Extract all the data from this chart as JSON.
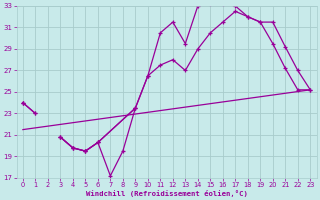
{
  "bg_color": "#c8eaea",
  "grid_color": "#a8cccc",
  "line_color": "#990099",
  "xlabel": "Windchill (Refroidissement éolien,°C)",
  "xlim": [
    -0.5,
    23.5
  ],
  "ylim": [
    17,
    33
  ],
  "yticks": [
    17,
    19,
    21,
    23,
    25,
    27,
    29,
    31,
    33
  ],
  "xticks": [
    0,
    1,
    2,
    3,
    4,
    5,
    6,
    7,
    8,
    9,
    10,
    11,
    12,
    13,
    14,
    15,
    16,
    17,
    18,
    19,
    20,
    21,
    22,
    23
  ],
  "line1_x": [
    0,
    1,
    3,
    4,
    5,
    6,
    7,
    8,
    9
  ],
  "line1_y": [
    24.0,
    23.0,
    20.8,
    19.8,
    19.5,
    20.3,
    17.2,
    19.5,
    23.5
  ],
  "line2_x": [
    0,
    3,
    4,
    5,
    6,
    9,
    10,
    11,
    12,
    13,
    14,
    15,
    16,
    17,
    18,
    19,
    20,
    21,
    22,
    23
  ],
  "line2_y": [
    24.0,
    20.8,
    19.8,
    19.5,
    20.3,
    23.5,
    26.5,
    30.5,
    31.5,
    29.5,
    33.0,
    33.2,
    33.2,
    33.0,
    32.0,
    31.5,
    29.5,
    27.2,
    25.2,
    25.2
  ],
  "line3_x": [
    0,
    1,
    3,
    4,
    5,
    6,
    9,
    10,
    11,
    12,
    13,
    14,
    15,
    16,
    17,
    18,
    19,
    20,
    21,
    22,
    23
  ],
  "line3_y": [
    24.0,
    23.0,
    20.8,
    19.8,
    19.5,
    20.3,
    23.5,
    26.5,
    27.5,
    28.0,
    27.0,
    29.0,
    30.5,
    31.5,
    32.5,
    32.0,
    31.5,
    31.5,
    29.2,
    27.0,
    25.2
  ],
  "line4_x": [
    0,
    23
  ],
  "line4_y": [
    21.5,
    25.2
  ]
}
